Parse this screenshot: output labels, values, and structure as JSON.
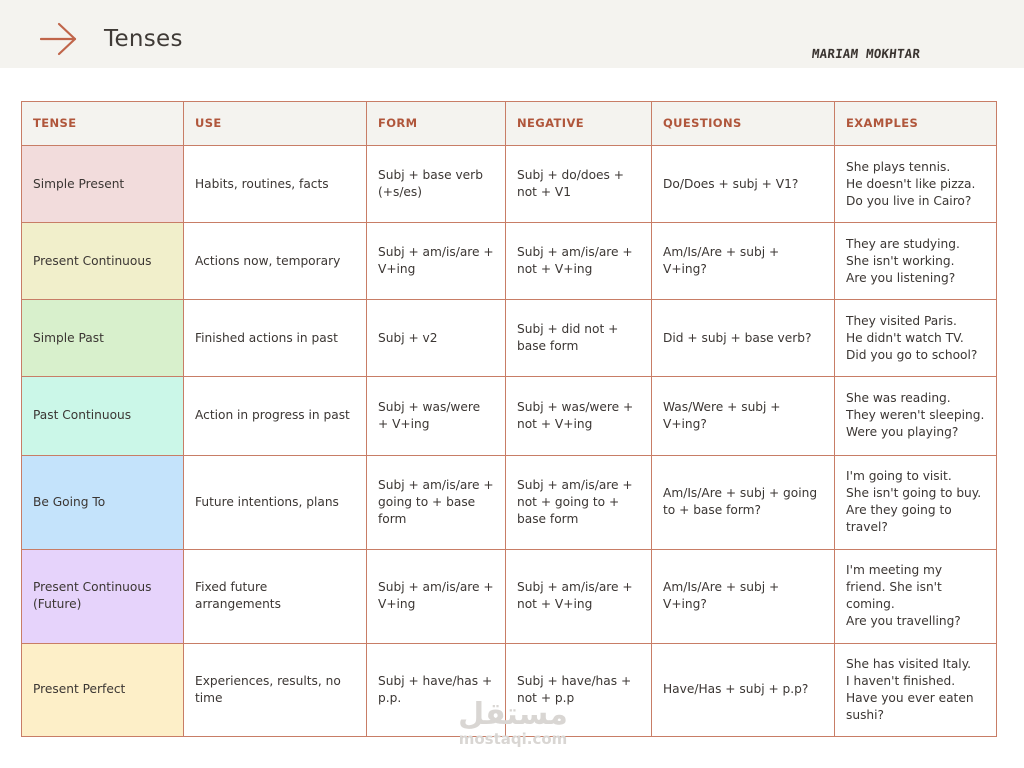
{
  "header": {
    "title": "Tenses",
    "author": "MARIAM MOKHTAR",
    "arrow_icon": "arrow-right-icon",
    "accent_color": "#b0563b"
  },
  "table": {
    "headers": [
      "TENSE",
      "USE",
      "FORM",
      "NEGATIVE",
      "QUESTIONS",
      "EXAMPLES"
    ],
    "rows": [
      {
        "tense": "Simple Present",
        "use": "Habits, routines, facts",
        "form": "Subj + base verb (+s/es)",
        "negative": "Subj + do/does + not + V1",
        "questions": "Do/Does + subj + V1?",
        "examples": "She plays tennis.\nHe doesn't like pizza.\nDo you live in Cairo?",
        "color": "#f2dcdc"
      },
      {
        "tense": "Present Continuous",
        "use": "Actions now, temporary",
        "form": "Subj + am/is/are + V+ing",
        "negative": "Subj + am/is/are + not + V+ing",
        "questions": "Am/Is/Are + subj + V+ing?",
        "examples": "They are studying.\nShe isn't working.\n Are you listening?",
        "color": "#f1efcb"
      },
      {
        "tense": "Simple Past",
        "use": "Finished actions in past",
        "form": "Subj + v2",
        "negative": "Subj + did not + base form",
        "questions": "Did + subj + base verb?",
        "examples": "They visited Paris.\nHe didn't watch TV.\nDid you go to school?",
        "color": "#d8f0cc"
      },
      {
        "tense": "Past Continuous",
        "use": "Action in progress in past",
        "form": "Subj + was/were + V+ing",
        "negative": "Subj + was/were + not + V+ing",
        "questions": "Was/Were + subj + V+ing?",
        "examples": "She was reading.\nThey weren't sleeping.\nWere you playing?",
        "color": "#cbf7e8"
      },
      {
        "tense": "Be Going To",
        "use": "Future intentions, plans",
        "form": "Subj + am/is/are + going to + base form",
        "negative": "Subj + am/is/are + not + going to + base form",
        "questions": "Am/Is/Are + subj + going to + base form?",
        "examples": "I'm going to visit.\nShe isn't going to buy.\nAre they going to travel?",
        "color": "#c4e3fb"
      },
      {
        "tense": "Present Continuous (Future)",
        "use": "Fixed future arrangements",
        "form": "Subj + am/is/are + V+ing",
        "negative": "Subj + am/is/are + not + V+ing",
        "questions": "Am/Is/Are + subj + V+ing?",
        "examples": "I'm meeting my friend. She isn't coming.\nAre you travelling?",
        "color": "#e6d3fb"
      },
      {
        "tense": "Present Perfect",
        "use": "Experiences, results, no time",
        "form": "Subj + have/has + p.p.",
        "negative": "Subj + have/has + not + p.p",
        "questions": "Have/Has + subj + p.p?",
        "examples": "She has visited Italy.\nI haven't finished.\nHave you ever eaten sushi?",
        "color": "#fdefc8"
      }
    ]
  },
  "watermark": {
    "arabic": "مستقل",
    "latin": "mostaqi.com"
  }
}
